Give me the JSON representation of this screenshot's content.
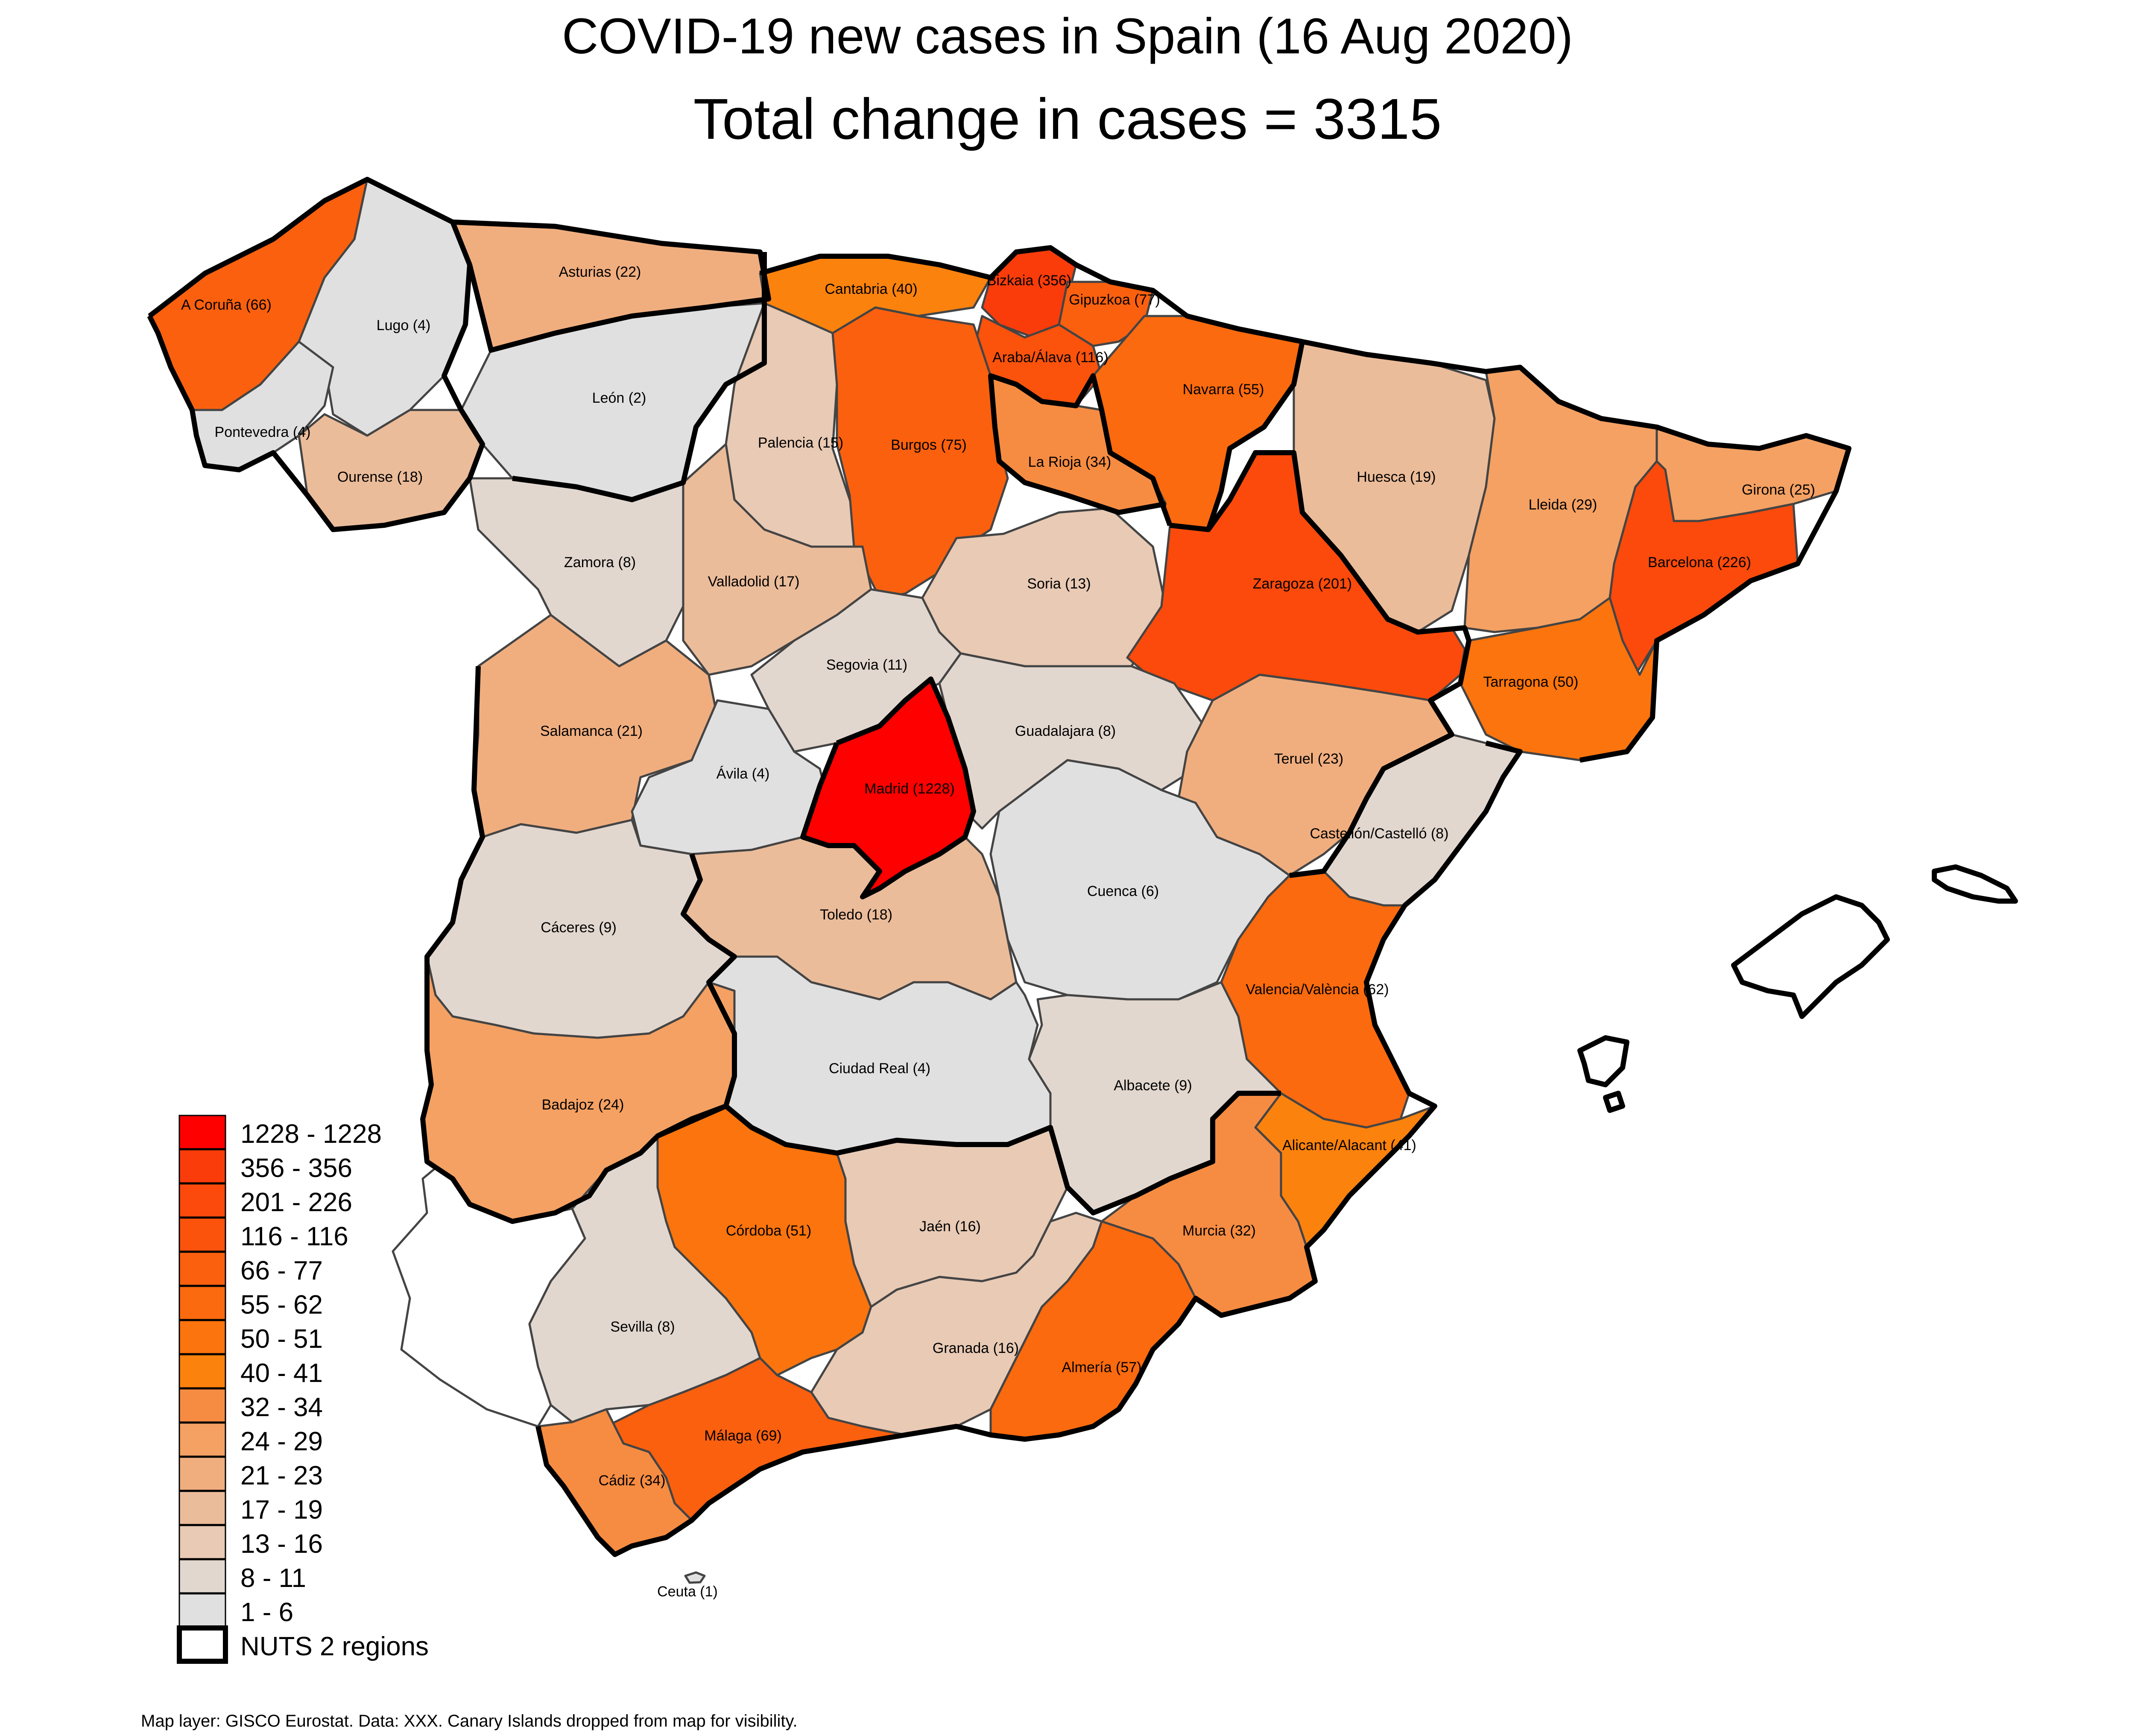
{
  "title_line1": "COVID-19 new cases in Spain (16 Aug 2020)",
  "title_line2": "Total change in cases  = 3315",
  "footer": "Map layer: GISCO Eurostat. Data: XXX. Canary Islands dropped from map for visibility.",
  "legend": [
    {
      "label": "1228 - 1228",
      "color": "#ff0000"
    },
    {
      "label": "356 - 356",
      "color": "#fa3c0a"
    },
    {
      "label": "201 - 226",
      "color": "#fb4a0b"
    },
    {
      "label": "116 - 116",
      "color": "#fb520c"
    },
    {
      "label": "66 - 77",
      "color": "#fb600e"
    },
    {
      "label": "55 - 62",
      "color": "#fb6a0e"
    },
    {
      "label": "50 - 51",
      "color": "#fb740d"
    },
    {
      "label": "40 - 41",
      "color": "#fb820d"
    },
    {
      "label": "32 - 34",
      "color": "#f68c42"
    },
    {
      "label": "24 - 29",
      "color": "#f4a163"
    },
    {
      "label": "21 - 23",
      "color": "#f0ae7f"
    },
    {
      "label": "17 - 19",
      "color": "#ebbc9a"
    },
    {
      "label": "13 - 16",
      "color": "#e8cab5"
    },
    {
      "label": "8 - 11",
      "color": "#e2d7cf"
    },
    {
      "label": "1 - 6",
      "color": "#e0e0e0"
    },
    {
      "label": "NUTS 2 regions",
      "color": "#ffffff"
    }
  ],
  "provinces": [
    {
      "label": "A Coruña (66)",
      "cases": 66,
      "color": "#fb600e"
    },
    {
      "label": "Lugo (4)",
      "cases": 4,
      "color": "#e0e0e0"
    },
    {
      "label": "Asturias (22)",
      "cases": 22,
      "color": "#f0ae7f"
    },
    {
      "label": "Cantabria (40)",
      "cases": 40,
      "color": "#fb820d"
    },
    {
      "label": "Bizkaia (356)",
      "cases": 356,
      "color": "#fa3c0a"
    },
    {
      "label": "Gipuzkoa (77)",
      "cases": 77,
      "color": "#fb600e"
    },
    {
      "label": "Araba/Álava (116)",
      "cases": 116,
      "color": "#fb520c"
    },
    {
      "label": "Navarra (55)",
      "cases": 55,
      "color": "#fb6a0e"
    },
    {
      "label": "León (2)",
      "cases": 2,
      "color": "#e0e0e0"
    },
    {
      "label": "Pontevedra (4)",
      "cases": 4,
      "color": "#e0e0e0"
    },
    {
      "label": "Ourense (18)",
      "cases": 18,
      "color": "#ebbc9a"
    },
    {
      "label": "Palencia (15)",
      "cases": 15,
      "color": "#e8cab5"
    },
    {
      "label": "Burgos (75)",
      "cases": 75,
      "color": "#fb600e"
    },
    {
      "label": "La Rioja (34)",
      "cases": 34,
      "color": "#f68c42"
    },
    {
      "label": "Huesca (19)",
      "cases": 19,
      "color": "#ebbc9a"
    },
    {
      "label": "Lleida (29)",
      "cases": 29,
      "color": "#f4a163"
    },
    {
      "label": "Girona (25)",
      "cases": 25,
      "color": "#f4a163"
    },
    {
      "label": "Barcelona (226)",
      "cases": 226,
      "color": "#fb4a0b"
    },
    {
      "label": "Zamora (8)",
      "cases": 8,
      "color": "#e2d7cf"
    },
    {
      "label": "Valladolid (17)",
      "cases": 17,
      "color": "#ebbc9a"
    },
    {
      "label": "Soria (13)",
      "cases": 13,
      "color": "#e8cab5"
    },
    {
      "label": "Zaragoza (201)",
      "cases": 201,
      "color": "#fb4a0b"
    },
    {
      "label": "Segovia (11)",
      "cases": 11,
      "color": "#e2d7cf"
    },
    {
      "label": "Tarragona (50)",
      "cases": 50,
      "color": "#fb740d"
    },
    {
      "label": "Salamanca (21)",
      "cases": 21,
      "color": "#f0ae7f"
    },
    {
      "label": "Guadalajara (8)",
      "cases": 8,
      "color": "#e2d7cf"
    },
    {
      "label": "Teruel (23)",
      "cases": 23,
      "color": "#f0ae7f"
    },
    {
      "label": "Ávila (4)",
      "cases": 4,
      "color": "#e0e0e0"
    },
    {
      "label": "Madrid (1228)",
      "cases": 1228,
      "color": "#ff0000"
    },
    {
      "label": "Castellón/Castelló (8)",
      "cases": 8,
      "color": "#e2d7cf"
    },
    {
      "label": "Cuenca (6)",
      "cases": 6,
      "color": "#e0e0e0"
    },
    {
      "label": "Cáceres (9)",
      "cases": 9,
      "color": "#e2d7cf"
    },
    {
      "label": "Toledo (18)",
      "cases": 18,
      "color": "#ebbc9a"
    },
    {
      "label": "Valencia/València (62)",
      "cases": 62,
      "color": "#fb6a0e"
    },
    {
      "label": "Ciudad Real (4)",
      "cases": 4,
      "color": "#e0e0e0"
    },
    {
      "label": "Albacete (9)",
      "cases": 9,
      "color": "#e2d7cf"
    },
    {
      "label": "Badajoz (24)",
      "cases": 24,
      "color": "#f4a163"
    },
    {
      "label": "Alicante/Alacant (41)",
      "cases": 41,
      "color": "#fb820d"
    },
    {
      "label": "Córdoba (51)",
      "cases": 51,
      "color": "#fb740d"
    },
    {
      "label": "Jaén (16)",
      "cases": 16,
      "color": "#e8cab5"
    },
    {
      "label": "Murcia (32)",
      "cases": 32,
      "color": "#f68c42"
    },
    {
      "label": "Sevilla (8)",
      "cases": 8,
      "color": "#e2d7cf"
    },
    {
      "label": "Granada (16)",
      "cases": 16,
      "color": "#e8cab5"
    },
    {
      "label": "Almería (57)",
      "cases": 57,
      "color": "#fb6a0e"
    },
    {
      "label": "Málaga (69)",
      "cases": 69,
      "color": "#fb600e"
    },
    {
      "label": "Cádiz (34)",
      "cases": 34,
      "color": "#f68c42"
    },
    {
      "label": "Ceuta (1)",
      "cases": 1,
      "color": "#e0e0e0"
    }
  ]
}
